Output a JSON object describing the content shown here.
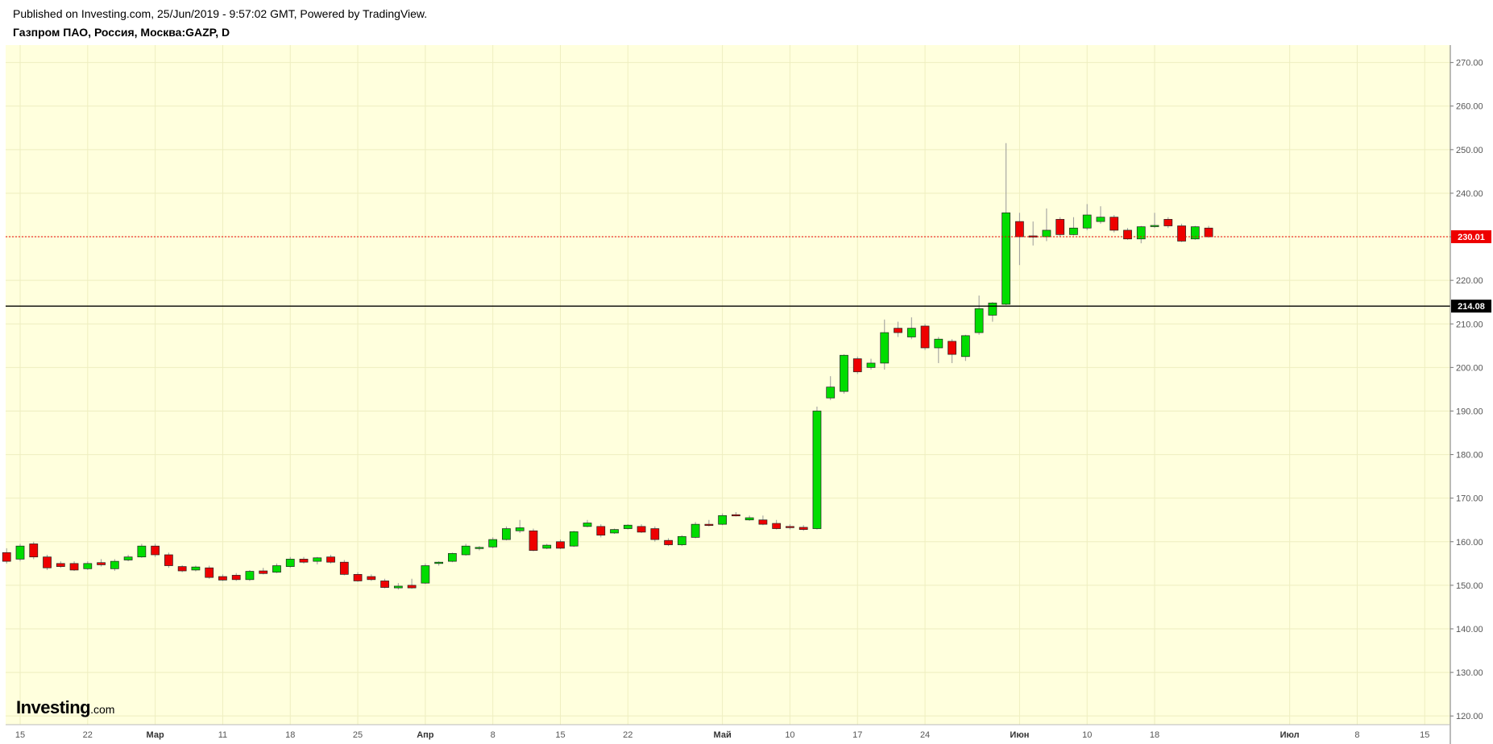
{
  "header": {
    "published": "Published on Investing.com, 25/Jun/2019 - 9:57:02 GMT, Powered by TradingView.",
    "symbol": "Газпром ПАО, Россия, Москва:GAZP, D"
  },
  "logo": {
    "main": "Investing",
    "suffix": ".com"
  },
  "colors": {
    "background": "#ffffdd",
    "up": "#00dd00",
    "down": "#ee0000",
    "last_price_line": "#ee0000",
    "level_line": "#000000"
  },
  "chart_data": {
    "type": "candlestick",
    "title": "Газпром ПАО, Россия, Москва:GAZP, D",
    "xlabel": "",
    "ylabel": "",
    "ylim": [
      118,
      274
    ],
    "y_ticks": [
      "120.00",
      "130.00",
      "140.00",
      "150.00",
      "160.00",
      "170.00",
      "180.00",
      "190.00",
      "200.00",
      "210.00",
      "220.00",
      "230.00",
      "240.00",
      "250.00",
      "260.00",
      "270.00"
    ],
    "y_tick_values": [
      120,
      130,
      140,
      150,
      160,
      170,
      180,
      190,
      200,
      210,
      220,
      230,
      240,
      250,
      260,
      270
    ],
    "x_ticks": [
      {
        "label": "15",
        "day": 0,
        "month": false
      },
      {
        "label": "22",
        "day": 5,
        "month": false
      },
      {
        "label": "Мар",
        "day": 10,
        "month": true
      },
      {
        "label": "11",
        "day": 15,
        "month": false
      },
      {
        "label": "18",
        "day": 20,
        "month": false
      },
      {
        "label": "25",
        "day": 25,
        "month": false
      },
      {
        "label": "Апр",
        "day": 30,
        "month": true
      },
      {
        "label": "8",
        "day": 35,
        "month": false
      },
      {
        "label": "15",
        "day": 40,
        "month": false
      },
      {
        "label": "22",
        "day": 45,
        "month": false
      },
      {
        "label": "Май",
        "day": 52,
        "month": true
      },
      {
        "label": "10",
        "day": 57,
        "month": false
      },
      {
        "label": "17",
        "day": 62,
        "month": false
      },
      {
        "label": "24",
        "day": 67,
        "month": false
      },
      {
        "label": "Июн",
        "day": 74,
        "month": true
      },
      {
        "label": "10",
        "day": 79,
        "month": false
      },
      {
        "label": "18",
        "day": 84,
        "month": false
      },
      {
        "label": "Июл",
        "day": 94,
        "month": true
      },
      {
        "label": "8",
        "day": 99,
        "month": false
      },
      {
        "label": "15",
        "day": 104,
        "month": false
      }
    ],
    "x_range": [
      -1,
      104.7
    ],
    "last_price": 230.01,
    "last_price_label": "230.01",
    "level": 214.08,
    "level_label": "214.08",
    "candles": [
      {
        "d": -1,
        "o": 157.5,
        "h": 158.5,
        "c": 155.5,
        "l": 155.0
      },
      {
        "d": 0,
        "o": 156.0,
        "h": 159.5,
        "c": 159.0,
        "l": 155.5
      },
      {
        "d": 1,
        "o": 159.5,
        "h": 160.0,
        "c": 156.5,
        "l": 156.0
      },
      {
        "d": 2,
        "o": 156.5,
        "h": 157.0,
        "c": 154.0,
        "l": 153.5
      },
      {
        "d": 3,
        "o": 155.0,
        "h": 155.5,
        "c": 154.3,
        "l": 154.0
      },
      {
        "d": 4,
        "o": 155.0,
        "h": 155.5,
        "c": 153.5,
        "l": 153.3
      },
      {
        "d": 5,
        "o": 153.8,
        "h": 155.5,
        "c": 155.0,
        "l": 153.5
      },
      {
        "d": 6,
        "o": 155.2,
        "h": 156.0,
        "c": 154.7,
        "l": 154.3
      },
      {
        "d": 7,
        "o": 153.8,
        "h": 156.0,
        "c": 155.5,
        "l": 153.3
      },
      {
        "d": 8,
        "o": 155.8,
        "h": 157.0,
        "c": 156.5,
        "l": 155.5
      },
      {
        "d": 9,
        "o": 156.5,
        "h": 159.5,
        "c": 159.0,
        "l": 156.3
      },
      {
        "d": 10,
        "o": 159.0,
        "h": 159.5,
        "c": 157.0,
        "l": 156.5
      },
      {
        "d": 11,
        "o": 157.0,
        "h": 157.5,
        "c": 154.5,
        "l": 154.0
      },
      {
        "d": 12,
        "o": 154.3,
        "h": 154.6,
        "c": 153.3,
        "l": 153.0
      },
      {
        "d": 13,
        "o": 153.5,
        "h": 154.5,
        "c": 154.2,
        "l": 153.2
      },
      {
        "d": 14,
        "o": 154.0,
        "h": 154.5,
        "c": 151.8,
        "l": 151.5
      },
      {
        "d": 15,
        "o": 152.0,
        "h": 152.5,
        "c": 151.2,
        "l": 151.0
      },
      {
        "d": 16,
        "o": 152.3,
        "h": 152.8,
        "c": 151.3,
        "l": 151.0
      },
      {
        "d": 17,
        "o": 151.3,
        "h": 153.5,
        "c": 153.2,
        "l": 151.0
      },
      {
        "d": 18,
        "o": 153.3,
        "h": 154.0,
        "c": 152.7,
        "l": 152.5
      },
      {
        "d": 19,
        "o": 153.0,
        "h": 155.0,
        "c": 154.5,
        "l": 152.8
      },
      {
        "d": 20,
        "o": 154.3,
        "h": 156.5,
        "c": 156.0,
        "l": 154.0
      },
      {
        "d": 21,
        "o": 156.0,
        "h": 156.5,
        "c": 155.3,
        "l": 155.0
      },
      {
        "d": 22,
        "o": 155.5,
        "h": 156.5,
        "c": 156.3,
        "l": 154.8
      },
      {
        "d": 23,
        "o": 156.5,
        "h": 157.0,
        "c": 155.3,
        "l": 155.0
      },
      {
        "d": 24,
        "o": 155.3,
        "h": 155.8,
        "c": 152.5,
        "l": 152.3
      },
      {
        "d": 25,
        "o": 152.5,
        "h": 153.0,
        "c": 151.0,
        "l": 150.8
      },
      {
        "d": 26,
        "o": 152.0,
        "h": 152.5,
        "c": 151.3,
        "l": 151.0
      },
      {
        "d": 27,
        "o": 151.0,
        "h": 151.5,
        "c": 149.5,
        "l": 149.3
      },
      {
        "d": 28,
        "o": 149.4,
        "h": 150.5,
        "c": 149.8,
        "l": 149.0
      },
      {
        "d": 29,
        "o": 150.0,
        "h": 151.5,
        "c": 149.4,
        "l": 149.2
      },
      {
        "d": 30,
        "o": 150.5,
        "h": 155.0,
        "c": 154.5,
        "l": 150.3
      },
      {
        "d": 31,
        "o": 155.0,
        "h": 155.5,
        "c": 155.3,
        "l": 154.5
      },
      {
        "d": 32,
        "o": 155.5,
        "h": 157.5,
        "c": 157.3,
        "l": 155.3
      },
      {
        "d": 33,
        "o": 157.0,
        "h": 159.5,
        "c": 159.0,
        "l": 156.8
      },
      {
        "d": 34,
        "o": 158.5,
        "h": 159.0,
        "c": 158.7,
        "l": 158.0
      },
      {
        "d": 35,
        "o": 158.8,
        "h": 161.0,
        "c": 160.5,
        "l": 158.5
      },
      {
        "d": 36,
        "o": 160.5,
        "h": 163.5,
        "c": 163.0,
        "l": 160.3
      },
      {
        "d": 37,
        "o": 162.5,
        "h": 165.0,
        "c": 163.2,
        "l": 162.0
      },
      {
        "d": 38,
        "o": 162.5,
        "h": 163.0,
        "c": 158.0,
        "l": 157.8
      },
      {
        "d": 39,
        "o": 158.5,
        "h": 159.5,
        "c": 159.2,
        "l": 158.3
      },
      {
        "d": 40,
        "o": 160.0,
        "h": 160.5,
        "c": 158.5,
        "l": 158.3
      },
      {
        "d": 41,
        "o": 159.0,
        "h": 162.5,
        "c": 162.3,
        "l": 158.8
      },
      {
        "d": 42,
        "o": 163.5,
        "h": 165.0,
        "c": 164.3,
        "l": 163.3
      },
      {
        "d": 43,
        "o": 163.5,
        "h": 164.0,
        "c": 161.5,
        "l": 161.0
      },
      {
        "d": 44,
        "o": 162.0,
        "h": 163.0,
        "c": 162.8,
        "l": 161.8
      },
      {
        "d": 45,
        "o": 163.0,
        "h": 164.0,
        "c": 163.8,
        "l": 162.8
      },
      {
        "d": 46,
        "o": 163.5,
        "h": 164.0,
        "c": 162.2,
        "l": 162.0
      },
      {
        "d": 47,
        "o": 163.0,
        "h": 163.5,
        "c": 160.5,
        "l": 160.0
      },
      {
        "d": 48,
        "o": 160.3,
        "h": 160.8,
        "c": 159.3,
        "l": 159.0
      },
      {
        "d": 49,
        "o": 159.3,
        "h": 161.5,
        "c": 161.2,
        "l": 159.0
      },
      {
        "d": 50,
        "o": 161.0,
        "h": 164.5,
        "c": 164.0,
        "l": 160.8
      },
      {
        "d": 51,
        "o": 164.0,
        "h": 165.0,
        "c": 163.8,
        "l": 163.5
      },
      {
        "d": 52,
        "o": 164.0,
        "h": 166.5,
        "c": 166.0,
        "l": 163.8
      },
      {
        "d": 53,
        "o": 166.2,
        "h": 166.8,
        "c": 166.0,
        "l": 165.8
      },
      {
        "d": 54,
        "o": 165.0,
        "h": 166.0,
        "c": 165.5,
        "l": 164.8
      },
      {
        "d": 55,
        "o": 165.0,
        "h": 166.0,
        "c": 164.0,
        "l": 163.8
      },
      {
        "d": 56,
        "o": 164.2,
        "h": 165.0,
        "c": 163.0,
        "l": 162.8
      },
      {
        "d": 57,
        "o": 163.5,
        "h": 164.0,
        "c": 163.3,
        "l": 162.8
      },
      {
        "d": 58,
        "o": 163.3,
        "h": 163.8,
        "c": 162.8,
        "l": 162.5
      },
      {
        "d": 59,
        "o": 163.0,
        "h": 191.0,
        "c": 190.0,
        "l": 162.8
      },
      {
        "d": 60,
        "o": 193.0,
        "h": 198.0,
        "c": 195.5,
        "l": 192.5
      },
      {
        "d": 61,
        "o": 194.5,
        "h": 203.0,
        "c": 202.8,
        "l": 194.0
      },
      {
        "d": 62,
        "o": 202.0,
        "h": 202.5,
        "c": 199.0,
        "l": 198.5
      },
      {
        "d": 63,
        "o": 200.0,
        "h": 202.0,
        "c": 201.0,
        "l": 199.5
      },
      {
        "d": 64,
        "o": 201.0,
        "h": 211.0,
        "c": 208.0,
        "l": 199.5
      },
      {
        "d": 65,
        "o": 209.0,
        "h": 210.5,
        "c": 208.0,
        "l": 207.0
      },
      {
        "d": 66,
        "o": 207.0,
        "h": 211.5,
        "c": 209.0,
        "l": 206.5
      },
      {
        "d": 67,
        "o": 209.5,
        "h": 210.0,
        "c": 204.5,
        "l": 204.0
      },
      {
        "d": 68,
        "o": 204.5,
        "h": 207.0,
        "c": 206.5,
        "l": 201.0
      },
      {
        "d": 69,
        "o": 206.0,
        "h": 206.5,
        "c": 203.0,
        "l": 201.0
      },
      {
        "d": 70,
        "o": 202.5,
        "h": 207.5,
        "c": 207.3,
        "l": 201.5
      },
      {
        "d": 71,
        "o": 208.0,
        "h": 216.5,
        "c": 213.5,
        "l": 207.5
      },
      {
        "d": 72,
        "o": 212.0,
        "h": 215.0,
        "c": 214.8,
        "l": 210.5
      },
      {
        "d": 73,
        "o": 214.5,
        "h": 251.5,
        "c": 235.5,
        "l": 214.3
      },
      {
        "d": 74,
        "o": 233.5,
        "h": 235.5,
        "c": 230.0,
        "l": 223.5
      },
      {
        "d": 75,
        "o": 230.2,
        "h": 233.5,
        "c": 230.0,
        "l": 228.0
      },
      {
        "d": 76,
        "o": 230.0,
        "h": 236.5,
        "c": 231.5,
        "l": 229.0
      },
      {
        "d": 77,
        "o": 234.0,
        "h": 234.5,
        "c": 230.5,
        "l": 230.0
      },
      {
        "d": 78,
        "o": 230.5,
        "h": 234.5,
        "c": 232.0,
        "l": 230.3
      },
      {
        "d": 79,
        "o": 232.0,
        "h": 237.5,
        "c": 235.0,
        "l": 231.5
      },
      {
        "d": 80,
        "o": 233.5,
        "h": 237.0,
        "c": 234.5,
        "l": 233.0
      },
      {
        "d": 81,
        "o": 234.5,
        "h": 235.0,
        "c": 231.5,
        "l": 231.0
      },
      {
        "d": 82,
        "o": 231.5,
        "h": 232.0,
        "c": 229.5,
        "l": 229.3
      },
      {
        "d": 83,
        "o": 229.5,
        "h": 232.5,
        "c": 232.3,
        "l": 228.5
      },
      {
        "d": 84,
        "o": 232.5,
        "h": 235.5,
        "c": 232.6,
        "l": 232.0
      },
      {
        "d": 85,
        "o": 234.0,
        "h": 234.5,
        "c": 232.5,
        "l": 232.0
      },
      {
        "d": 86,
        "o": 232.5,
        "h": 233.0,
        "c": 229.0,
        "l": 228.8
      },
      {
        "d": 87,
        "o": 229.5,
        "h": 232.5,
        "c": 232.3,
        "l": 229.3
      },
      {
        "d": 88,
        "o": 232.0,
        "h": 232.5,
        "c": 230.0,
        "l": 229.8
      }
    ]
  }
}
